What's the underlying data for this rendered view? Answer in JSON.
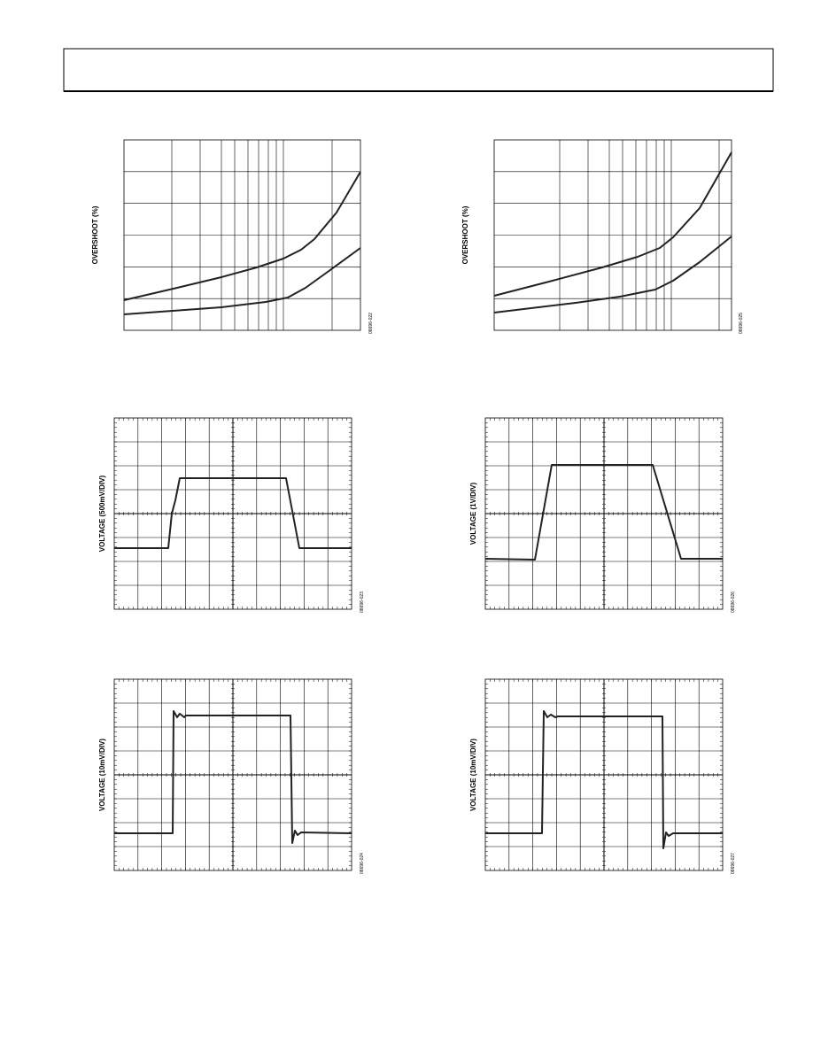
{
  "figures": [
    {
      "y_label": "OVERSHOOT (%)",
      "code": "08696-022"
    },
    {
      "y_label": "OVERSHOOT (%)",
      "code": "08696-025"
    },
    {
      "y_label": "VOLTAGE (500mV/DIV)",
      "code": "08696-023"
    },
    {
      "y_label": "VOLTAGE (1V/DIV)",
      "code": "08696-026"
    },
    {
      "y_label": "VOLTAGE (10mV/DIV)",
      "code": "08696-024"
    },
    {
      "y_label": "VOLTAGE (10mV/DIV)",
      "code": "08696-027"
    }
  ]
}
